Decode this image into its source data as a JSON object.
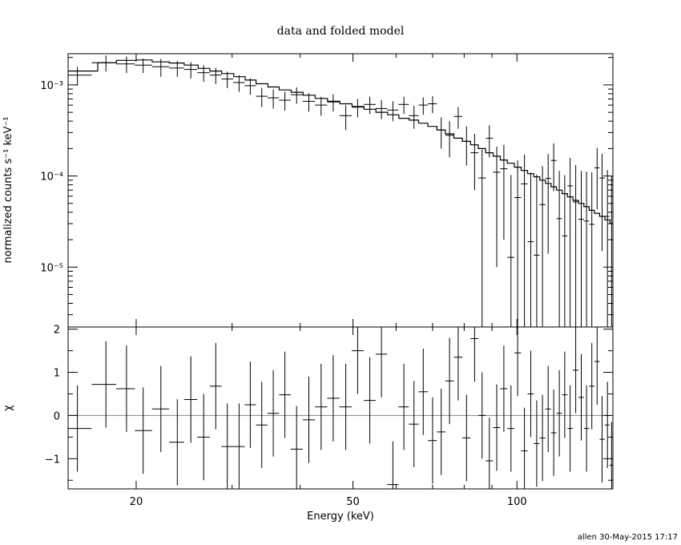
{
  "chart_data": [
    {
      "type": "scatter",
      "title": "data and folded model",
      "xlabel": "Energy (keV)",
      "ylabel": "normalized counts s⁻¹ keV⁻¹",
      "xscale": "log",
      "yscale": "log",
      "xlim": [
        15,
        150
      ],
      "ylim": [
        2.2e-06,
        0.0022
      ],
      "yticks": [
        1e-05,
        0.0001,
        0.001
      ],
      "ytick_labels": [
        "10⁻⁵",
        "10⁻⁴",
        "10⁻³"
      ],
      "series": [
        {
          "role": "data",
          "color": "#000000",
          "x": [
            15.6,
            17.6,
            19.2,
            20.6,
            22.2,
            23.8,
            25.2,
            26.6,
            28.0,
            29.4,
            30.9,
            32.4,
            34.0,
            35.7,
            37.5,
            39.4,
            41.5,
            43.7,
            46.0,
            48.5,
            51.0,
            53.7,
            56.4,
            59.2,
            62.0,
            64.7,
            67.3,
            70.0,
            72.6,
            75.2,
            78.0,
            80.8,
            83.6,
            86.3,
            89.0,
            91.8,
            94.6,
            97.5,
            100.3,
            103.2,
            106.0,
            108.7,
            111.4,
            114.1,
            116.8,
            119.6,
            122.4,
            125.2,
            128.2,
            131.2,
            134.2,
            137.2,
            140.3,
            143.3,
            146.6,
            149.2
          ],
          "y": [
            0.00128,
            0.00175,
            0.0017,
            0.00165,
            0.00158,
            0.00153,
            0.00148,
            0.00136,
            0.00128,
            0.00116,
            0.00106,
            0.00098,
            0.00075,
            0.00072,
            0.00068,
            0.00078,
            0.00066,
            0.0006,
            0.00065,
            0.00046,
            0.00057,
            0.00061,
            0.00055,
            0.00053,
            0.00061,
            0.00046,
            0.0006,
            0.00062,
            0.00032,
            0.00028,
            0.00045,
            0.00024,
            0.00018,
            9.5e-05,
            0.00026,
            0.00011,
            0.00012,
            1.28e-05,
            5.8e-05,
            8.2e-05,
            1.9e-05,
            1.35e-05,
            4.85e-05,
            9.4e-05,
            0.000148,
            3.4e-05,
            2.2e-05,
            7.8e-05,
            5.2e-05,
            3.35e-05,
            3.2e-05,
            2.95e-05,
            0.000123,
            9.5e-05,
            3.6e-05,
            2e-05
          ],
          "yerr": [
            0.0003,
            0.00035,
            0.00035,
            0.0003,
            0.00035,
            0.0003,
            0.0003,
            0.00028,
            0.00026,
            0.00024,
            0.00022,
            0.0002,
            0.00018,
            0.00017,
            0.00016,
            0.00016,
            0.00015,
            0.00014,
            0.00014,
            0.00014,
            0.00013,
            0.00013,
            0.00013,
            0.00013,
            0.00013,
            0.00013,
            0.00013,
            0.00013,
            0.00012,
            0.00012,
            0.00012,
            0.00011,
            0.00011,
            0.0001,
            0.0001,
            0.0001,
            0.0001,
            9e-05,
            9e-05,
            9e-05,
            9e-05,
            9e-05,
            8e-05,
            8e-05,
            8e-05,
            8e-05,
            8e-05,
            8e-05,
            8e-05,
            8e-05,
            8e-05,
            8e-05,
            8e-05,
            8e-05,
            8e-05,
            8e-05
          ]
        },
        {
          "role": "model",
          "color": "#000000",
          "step": true,
          "x": [
            15.0,
            17.0,
            18.4,
            20.0,
            21.4,
            23.0,
            24.5,
            26.0,
            27.3,
            28.7,
            30.2,
            31.7,
            33.2,
            34.9,
            36.6,
            38.5,
            40.5,
            42.6,
            44.9,
            47.3,
            49.8,
            52.4,
            55.1,
            57.9,
            60.7,
            63.4,
            66.0,
            68.6,
            71.3,
            73.9,
            76.6,
            79.4,
            82.2,
            84.9,
            87.6,
            90.4,
            93.2,
            96.0,
            98.9,
            101.8,
            104.6,
            107.4,
            110.1,
            112.8,
            115.5,
            118.2,
            121.0,
            123.8,
            126.7,
            129.7,
            132.7,
            135.7,
            138.7,
            141.8,
            145.0,
            148.2
          ],
          "y": [
            0.00142,
            0.00175,
            0.00186,
            0.00188,
            0.00179,
            0.00174,
            0.00165,
            0.00152,
            0.00142,
            0.00133,
            0.00123,
            0.00113,
            0.00103,
            0.00095,
            0.00088,
            0.00083,
            0.00077,
            0.00071,
            0.00066,
            0.00062,
            0.00058,
            0.00054,
            0.0005,
            0.00047,
            0.00043,
            0.00041,
            0.00038,
            0.00035,
            0.00032,
            0.00029,
            0.00026,
            0.00024,
            0.00022,
            0.0002,
            0.00018,
            0.000165,
            0.00015,
            0.000138,
            0.000125,
            0.000115,
            0.000106,
            9.8e-05,
            9e-05,
            8.3e-05,
            7.6e-05,
            7e-05,
            6.4e-05,
            5.9e-05,
            5.4e-05,
            5e-05,
            4.6e-05,
            4.2e-05,
            3.9e-05,
            3.6e-05,
            3.3e-05,
            3e-05
          ]
        }
      ]
    },
    {
      "type": "scatter",
      "xlabel": "Energy (keV)",
      "ylabel": "χ",
      "xscale": "log",
      "xlim": [
        15,
        150
      ],
      "ylim": [
        -1.7,
        2.05
      ],
      "yticks": [
        -1,
        0,
        1,
        2
      ],
      "ytick_labels": [
        "−1",
        "0",
        "1",
        "2"
      ],
      "xticks": [
        20,
        50,
        100
      ],
      "xtick_labels": [
        "20",
        "50",
        "100"
      ],
      "reference_line": {
        "y": 0,
        "color": "#22cc22"
      },
      "series": [
        {
          "role": "residuals",
          "color": "#000000",
          "x": [
            15.6,
            17.6,
            19.2,
            20.6,
            22.2,
            23.8,
            25.2,
            26.6,
            28.0,
            29.4,
            30.9,
            32.4,
            34.0,
            35.7,
            37.5,
            39.4,
            41.5,
            43.7,
            46.0,
            48.5,
            51.0,
            53.7,
            56.4,
            59.2,
            62.0,
            64.7,
            67.3,
            70.0,
            72.6,
            75.2,
            78.0,
            80.8,
            83.6,
            86.3,
            89.0,
            91.8,
            94.6,
            97.5,
            100.3,
            103.2,
            106.0,
            108.7,
            111.4,
            114.1,
            116.8,
            119.6,
            122.4,
            125.2,
            128.2,
            131.2,
            134.2,
            137.2,
            140.3,
            143.3,
            146.6,
            149.2
          ],
          "y": [
            -0.3,
            0.72,
            0.62,
            -0.35,
            0.15,
            -0.62,
            0.37,
            -0.5,
            0.68,
            -0.72,
            -0.72,
            0.25,
            -0.22,
            0.05,
            0.48,
            -0.78,
            -0.1,
            0.2,
            0.4,
            0.2,
            1.5,
            0.35,
            1.42,
            -1.6,
            0.2,
            -0.2,
            0.55,
            -0.58,
            -0.38,
            0.8,
            1.35,
            -0.52,
            1.78,
            0.0,
            -1.05,
            -0.28,
            0.62,
            -0.3,
            1.45,
            -0.82,
            0.5,
            -0.65,
            -0.52,
            0.15,
            -0.4,
            0.05,
            0.48,
            -0.3,
            1.05,
            0.42,
            -0.3,
            0.68,
            1.25,
            -0.55,
            -0.22,
            -1.15
          ],
          "yerr": [
            1.0,
            1.0,
            1.0,
            1.0,
            1.0,
            1.0,
            1.0,
            1.0,
            1.0,
            1.0,
            1.0,
            1.0,
            1.0,
            1.0,
            1.0,
            1.0,
            1.0,
            1.0,
            1.0,
            1.0,
            1.0,
            1.0,
            1.0,
            1.0,
            1.0,
            1.0,
            1.0,
            1.0,
            1.0,
            1.0,
            1.0,
            1.0,
            1.0,
            1.0,
            1.0,
            1.0,
            1.0,
            1.0,
            1.0,
            1.0,
            1.0,
            1.0,
            1.0,
            1.0,
            1.0,
            1.0,
            1.0,
            1.0,
            1.0,
            1.0,
            1.0,
            1.0,
            1.0,
            1.0,
            1.0,
            1.0
          ]
        }
      ]
    }
  ],
  "footer": {
    "stamp": "allen 30-May-2015 17:17"
  }
}
